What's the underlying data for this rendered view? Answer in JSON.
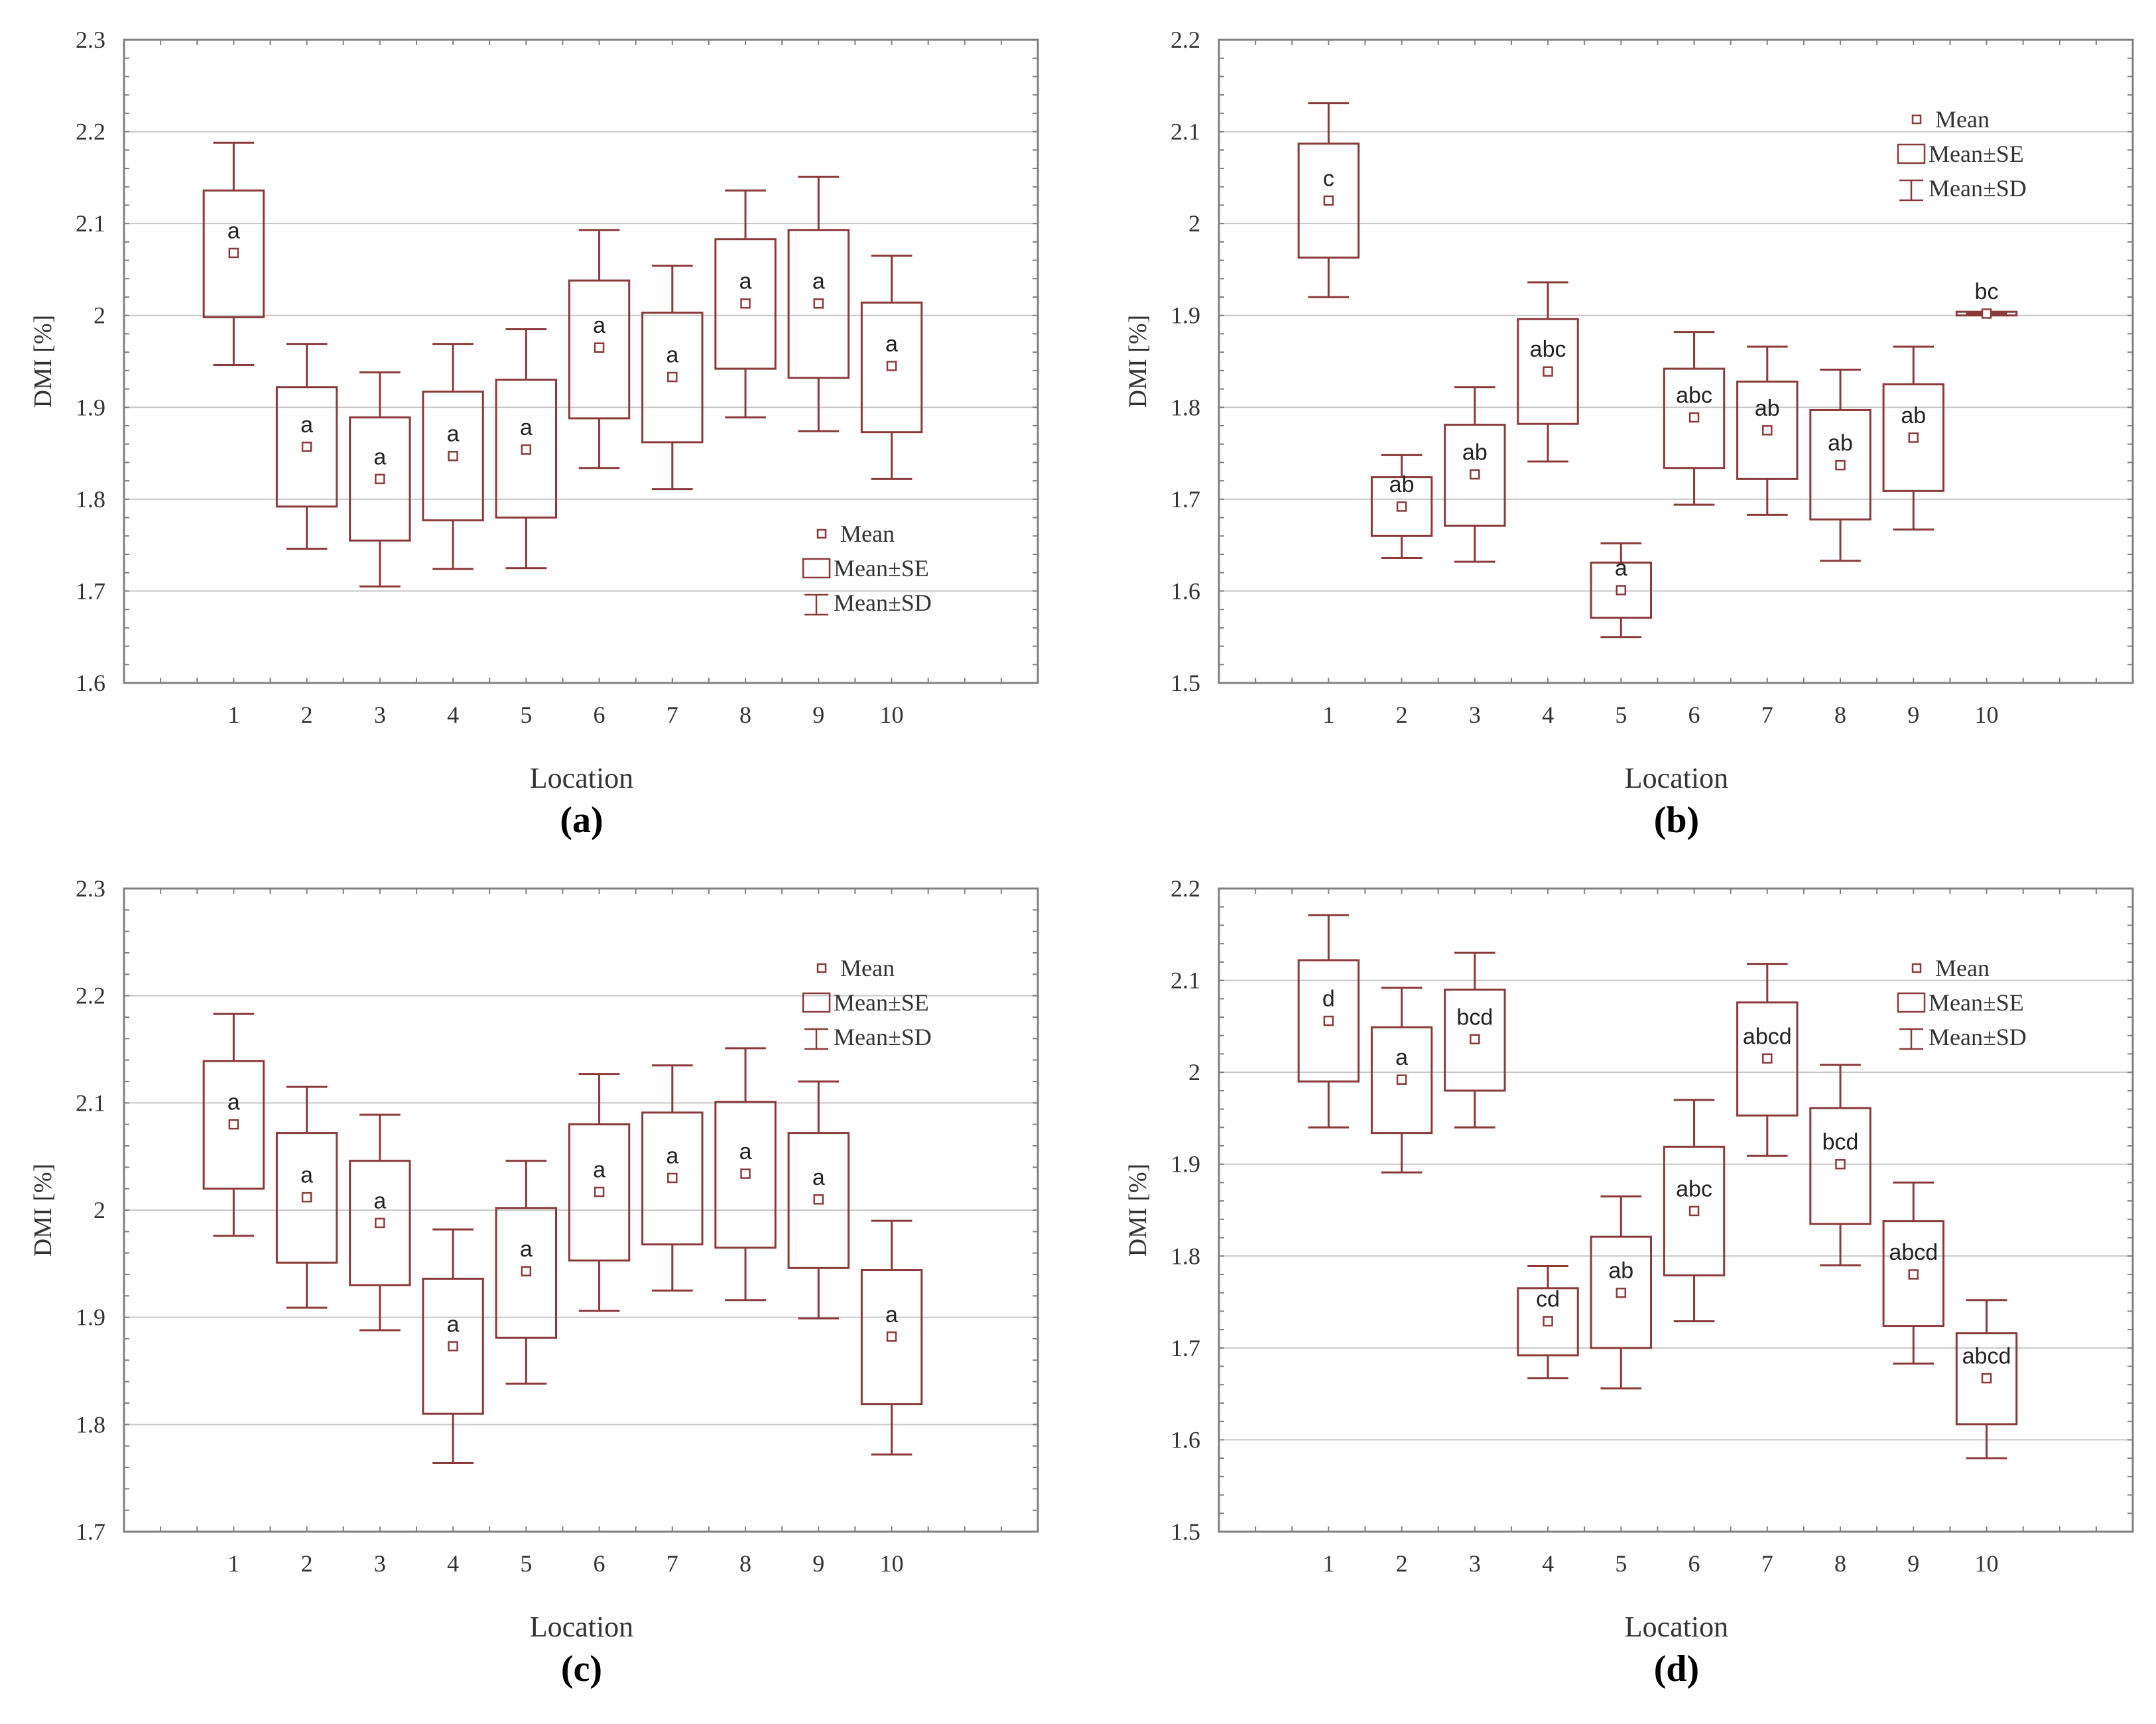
{
  "style": {
    "box_color": "#8b3a3a",
    "grid_color": "#c8c8c8",
    "frame_color": "#808080",
    "text_color": "#333333",
    "background": "#ffffff"
  },
  "chart_data": [
    {
      "panel": "(a)",
      "type": "box",
      "xlabel": "Location",
      "ylabel": "DMI [%]",
      "ylim": [
        1.6,
        2.3
      ],
      "yticks": [
        "1.6",
        "1.7",
        "1.8",
        "1.9",
        "2",
        "2.1",
        "2.2",
        "2.3"
      ],
      "tick_values": [
        1.6,
        1.7,
        1.8,
        1.9,
        2.0,
        2.1,
        2.2,
        2.3
      ],
      "categories": [
        "1",
        "2",
        "3",
        "4",
        "5",
        "6",
        "7",
        "8",
        "9",
        "10"
      ],
      "mean": [
        2.068,
        1.857,
        1.822,
        1.847,
        1.854,
        1.965,
        1.933,
        2.013,
        2.013,
        1.945
      ],
      "se_low": [
        1.998,
        1.792,
        1.755,
        1.777,
        1.78,
        1.888,
        1.862,
        1.942,
        1.932,
        1.873
      ],
      "se_high": [
        2.136,
        1.922,
        1.889,
        1.917,
        1.93,
        2.038,
        2.003,
        2.083,
        2.093,
        2.014
      ],
      "sd_low": [
        1.946,
        1.746,
        1.705,
        1.724,
        1.725,
        1.834,
        1.811,
        1.889,
        1.874,
        1.822
      ],
      "sd_high": [
        2.188,
        1.969,
        1.938,
        1.969,
        1.985,
        2.093,
        2.054,
        2.136,
        2.151,
        2.065
      ],
      "letters": [
        "a",
        "a",
        "a",
        "a",
        "a",
        "a",
        "a",
        "a",
        "a",
        "a"
      ],
      "legend": [
        "Mean",
        "Mean±SE",
        "Mean±SD"
      ],
      "legend_position": "bottom-right"
    },
    {
      "panel": "(b)",
      "type": "box",
      "xlabel": "Location",
      "ylabel": "DMI [%]",
      "ylim": [
        1.5,
        2.2
      ],
      "yticks": [
        "1.5",
        "1.6",
        "1.7",
        "1.8",
        "1.9",
        "2",
        "2.1",
        "2.2"
      ],
      "tick_values": [
        1.5,
        1.6,
        1.7,
        1.8,
        1.9,
        2.0,
        2.1,
        2.2
      ],
      "categories": [
        "1",
        "2",
        "3",
        "4",
        "5",
        "6",
        "7",
        "8",
        "9",
        "10"
      ],
      "mean": [
        2.025,
        1.692,
        1.727,
        1.839,
        1.601,
        1.789,
        1.775,
        1.737,
        1.767,
        1.902
      ],
      "se_low": [
        1.963,
        1.66,
        1.671,
        1.782,
        1.571,
        1.734,
        1.722,
        1.678,
        1.709,
        1.9
      ],
      "se_high": [
        2.087,
        1.724,
        1.781,
        1.896,
        1.631,
        1.842,
        1.828,
        1.797,
        1.825,
        1.904
      ],
      "sd_low": [
        1.92,
        1.636,
        1.632,
        1.741,
        1.55,
        1.694,
        1.683,
        1.633,
        1.667,
        1.901
      ],
      "sd_high": [
        2.131,
        1.748,
        1.822,
        1.936,
        1.652,
        1.882,
        1.866,
        1.841,
        1.866,
        1.903
      ],
      "letters": [
        "c",
        "ab",
        "ab",
        "abc",
        "a",
        "abc",
        "ab",
        "ab",
        "ab",
        "bc"
      ],
      "legend": [
        "Mean",
        "Mean±SE",
        "Mean±SD"
      ],
      "legend_position": "top-right"
    },
    {
      "panel": "(c)",
      "type": "box",
      "xlabel": "Location",
      "ylabel": "DMI [%]",
      "ylim": [
        1.7,
        2.3
      ],
      "yticks": [
        "1.7",
        "1.8",
        "1.9",
        "2",
        "2.1",
        "2.2",
        "2.3"
      ],
      "tick_values": [
        1.7,
        1.8,
        1.9,
        2.0,
        2.1,
        2.2,
        2.3
      ],
      "categories": [
        "1",
        "2",
        "3",
        "4",
        "5",
        "6",
        "7",
        "8",
        "9",
        "10"
      ],
      "mean": [
        2.08,
        2.012,
        1.988,
        1.873,
        1.943,
        2.017,
        2.03,
        2.034,
        2.01,
        1.882
      ],
      "se_low": [
        2.02,
        1.951,
        1.93,
        1.81,
        1.881,
        1.953,
        1.968,
        1.965,
        1.946,
        1.819
      ],
      "se_high": [
        2.139,
        2.072,
        2.046,
        1.936,
        2.002,
        2.08,
        2.091,
        2.101,
        2.072,
        1.944
      ],
      "sd_low": [
        1.976,
        1.909,
        1.888,
        1.764,
        1.838,
        1.906,
        1.925,
        1.916,
        1.899,
        1.772
      ],
      "sd_high": [
        2.183,
        2.115,
        2.089,
        1.982,
        2.046,
        2.127,
        2.135,
        2.151,
        2.12,
        1.99
      ],
      "letters": [
        "a",
        "a",
        "a",
        "a",
        "a",
        "a",
        "a",
        "a",
        "a",
        "a"
      ],
      "legend": [
        "Mean",
        "Mean±SE",
        "Mean±SD"
      ],
      "legend_position": "top-right"
    },
    {
      "panel": "(d)",
      "type": "box",
      "xlabel": "Location",
      "ylabel": "DMI [%]",
      "ylim": [
        1.5,
        2.2
      ],
      "yticks": [
        "1.5",
        "1.6",
        "1.7",
        "1.8",
        "1.9",
        "2",
        "2.1",
        "2.2"
      ],
      "tick_values": [
        1.5,
        1.6,
        1.7,
        1.8,
        1.9,
        2.0,
        2.1,
        2.2
      ],
      "categories": [
        "1",
        "2",
        "3",
        "4",
        "5",
        "6",
        "7",
        "8",
        "9",
        "10"
      ],
      "mean": [
        2.056,
        1.992,
        2.036,
        1.729,
        1.76,
        1.849,
        2.015,
        1.9,
        1.78,
        1.667
      ],
      "se_low": [
        1.99,
        1.934,
        1.98,
        1.692,
        1.7,
        1.779,
        1.953,
        1.835,
        1.724,
        1.617
      ],
      "se_high": [
        2.122,
        2.049,
        2.09,
        1.765,
        1.821,
        1.919,
        2.076,
        1.961,
        1.838,
        1.716
      ],
      "sd_low": [
        1.94,
        1.891,
        1.94,
        1.667,
        1.656,
        1.729,
        1.909,
        1.79,
        1.683,
        1.58
      ],
      "sd_high": [
        2.171,
        2.092,
        2.13,
        1.789,
        1.865,
        1.97,
        2.118,
        2.008,
        1.88,
        1.752
      ],
      "letters": [
        "d",
        "a",
        "bcd",
        "cd",
        "ab",
        "abc",
        "abcd",
        "bcd",
        "abcd",
        "abcd"
      ],
      "legend": [
        "Mean",
        "Mean±SE",
        "Mean±SD"
      ],
      "legend_position": "top-right"
    }
  ]
}
